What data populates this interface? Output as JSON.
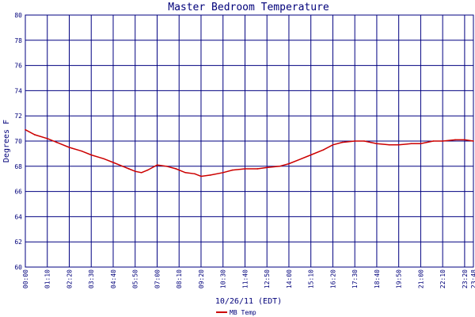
{
  "chart_data": {
    "type": "line",
    "title": "Master Bedroom Temperature",
    "xlabel": "10/26/11 (EDT)",
    "ylabel": "Degrees F",
    "ylim": [
      60,
      80
    ],
    "xlim": [
      "00:00",
      "23:48"
    ],
    "y_ticks": [
      60,
      62,
      64,
      66,
      68,
      70,
      72,
      74,
      76,
      78,
      80
    ],
    "x_ticks": [
      "00:00",
      "01:10",
      "02:20",
      "03:30",
      "04:40",
      "05:50",
      "07:00",
      "08:10",
      "09:20",
      "10:30",
      "11:40",
      "12:50",
      "14:00",
      "15:10",
      "16:20",
      "17:30",
      "18:40",
      "19:50",
      "21:00",
      "22:10",
      "23:20",
      "23:48"
    ],
    "grid": true,
    "legend_position": "bottom-left",
    "series_color": "#cc0000",
    "series": [
      {
        "name": "MB Temp",
        "x": [
          "00:00",
          "00:30",
          "01:10",
          "01:40",
          "02:20",
          "03:00",
          "03:30",
          "04:10",
          "04:40",
          "05:10",
          "05:30",
          "05:50",
          "06:10",
          "06:30",
          "07:00",
          "07:30",
          "08:00",
          "08:30",
          "09:00",
          "09:20",
          "09:50",
          "10:30",
          "11:00",
          "11:40",
          "12:20",
          "12:50",
          "13:30",
          "14:00",
          "14:40",
          "15:10",
          "15:50",
          "16:20",
          "16:50",
          "17:30",
          "18:00",
          "18:40",
          "19:20",
          "19:50",
          "20:30",
          "21:00",
          "21:40",
          "22:10",
          "22:50",
          "23:20",
          "23:48"
        ],
        "values": [
          70.9,
          70.5,
          70.2,
          69.9,
          69.5,
          69.2,
          68.9,
          68.6,
          68.3,
          68.0,
          67.8,
          67.6,
          67.5,
          67.7,
          68.1,
          68.0,
          67.8,
          67.5,
          67.4,
          67.2,
          67.3,
          67.5,
          67.7,
          67.8,
          67.8,
          67.9,
          68.0,
          68.2,
          68.6,
          68.9,
          69.3,
          69.7,
          69.9,
          70.0,
          70.0,
          69.8,
          69.7,
          69.7,
          69.8,
          69.8,
          70.0,
          70.0,
          70.1,
          70.1,
          70.0
        ]
      }
    ]
  }
}
